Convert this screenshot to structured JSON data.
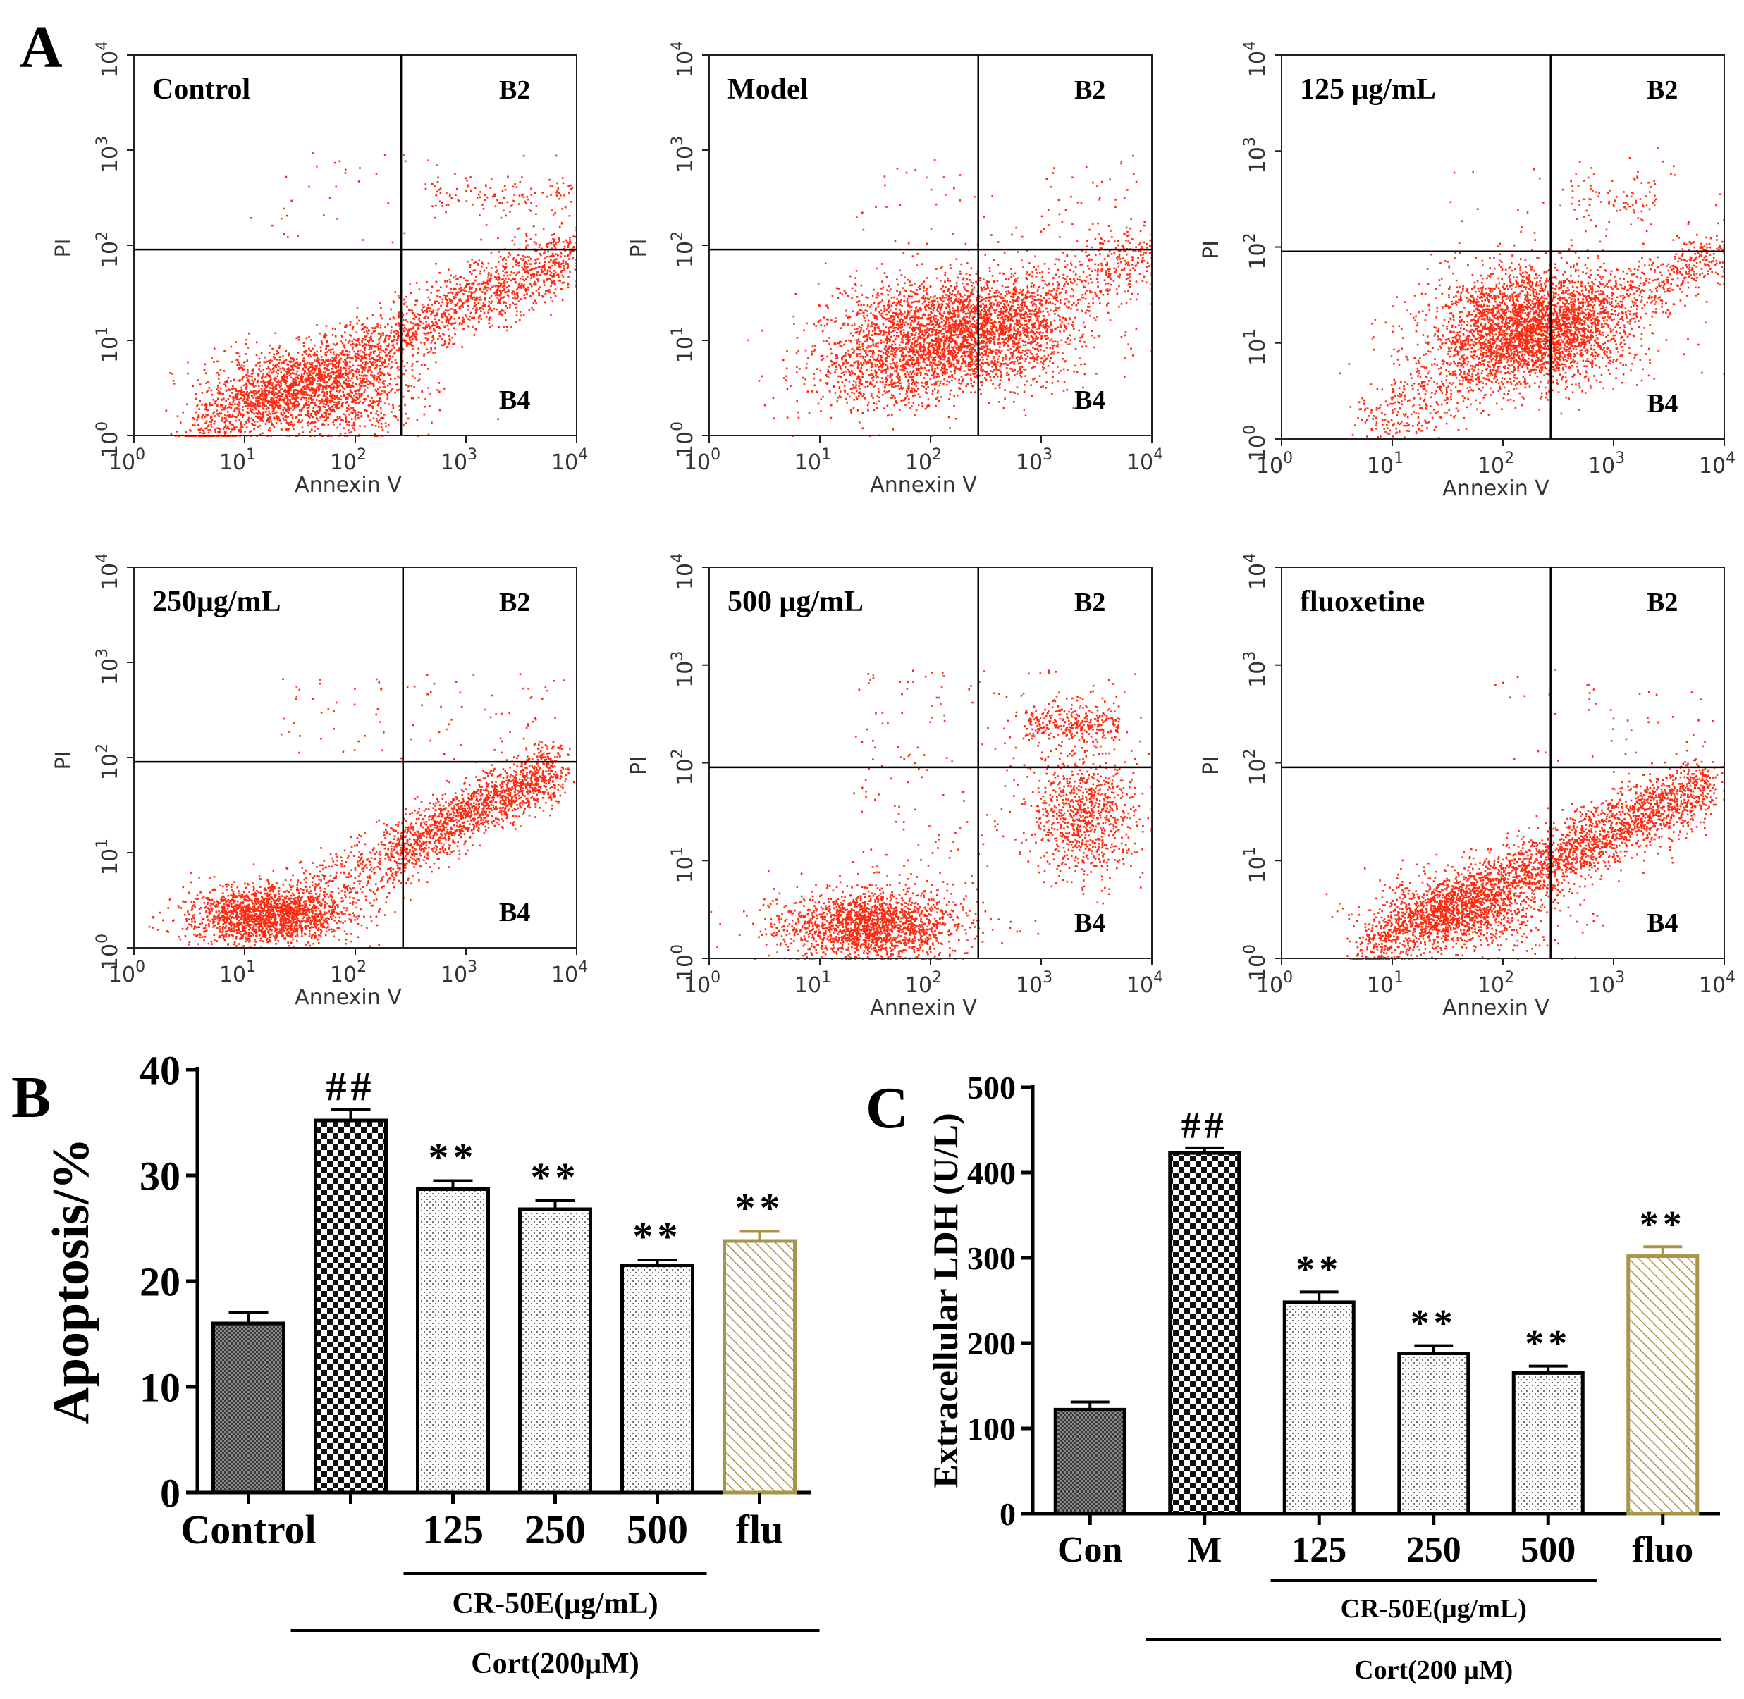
{
  "colors": {
    "dots": "#ff2a12",
    "axis": "#222222",
    "flu": "#a8954a",
    "bar_fill": "#ffffff"
  },
  "panel_labels": {
    "a": "A",
    "b": "B",
    "c": "C"
  },
  "chart_data": [
    {
      "type": "scatter",
      "role": "flow-cytometry-grid",
      "xlabel": "Annexin V",
      "ylabel": "PI",
      "ticks": [
        {
          "base": "10",
          "exp": "0",
          "value": 1
        },
        {
          "base": "10",
          "exp": "1",
          "value": 10
        },
        {
          "base": "10",
          "exp": "2",
          "value": 100
        },
        {
          "base": "10",
          "exp": "3",
          "value": 1000
        },
        {
          "base": "10",
          "exp": "4",
          "value": 10000
        }
      ],
      "xlim": [
        1,
        10000
      ],
      "ylim": [
        1,
        10000
      ],
      "quadrant_labels": {
        "upper_right": "B2",
        "lower_right": "B4"
      },
      "gate": {
        "annexin": 270,
        "pi": 90
      },
      "panels": [
        {
          "label": "Control",
          "quadrant_gate": {
            "annexin": 260,
            "pi": 90
          },
          "populations": [
            {
              "kind": "diag",
              "x_from": 3,
              "x_to": 9000,
              "y_from": 1.1,
              "y_to": 80,
              "spread": 0.18,
              "n": 2200
            },
            {
              "kind": "blob",
              "x": 40,
              "y": 3,
              "sx": 0.45,
              "sy": 0.22,
              "n": 1500
            },
            {
              "kind": "band",
              "x_from": 500,
              "x_to": 9000,
              "y": 330,
              "sy": 0.1,
              "n": 110
            },
            {
              "kind": "sparse",
              "x_from": 10,
              "x_to": 9000,
              "y_from": 100,
              "y_to": 1000,
              "n": 60
            }
          ]
        },
        {
          "label": "Model",
          "quadrant_gate": {
            "annexin": 270,
            "pi": 90
          },
          "populations": [
            {
              "kind": "blob",
              "x": 180,
              "y": 12,
              "sx": 0.5,
              "sy": 0.3,
              "n": 2800
            },
            {
              "kind": "blob",
              "x": 30,
              "y": 5,
              "sx": 0.35,
              "sy": 0.25,
              "n": 600
            },
            {
              "kind": "diag",
              "x_from": 100,
              "x_to": 9000,
              "y_from": 8,
              "y_to": 90,
              "spread": 0.2,
              "n": 700
            },
            {
              "kind": "sparse",
              "x_from": 20,
              "x_to": 9000,
              "y_from": 100,
              "y_to": 900,
              "n": 70
            }
          ]
        },
        {
          "label": "125 μg/mL",
          "quadrant_gate": {
            "annexin": 270,
            "pi": 90
          },
          "populations": [
            {
              "kind": "blob",
              "x": 180,
              "y": 15,
              "sx": 0.45,
              "sy": 0.3,
              "n": 3000
            },
            {
              "kind": "diag",
              "x_from": 5,
              "x_to": 300,
              "y_from": 1.2,
              "y_to": 15,
              "spread": 0.2,
              "n": 700
            },
            {
              "kind": "diag",
              "x_from": 300,
              "x_to": 9000,
              "y_from": 15,
              "y_to": 90,
              "spread": 0.15,
              "n": 500
            },
            {
              "kind": "band",
              "x_from": 400,
              "x_to": 2500,
              "y": 300,
              "sy": 0.15,
              "n": 90
            },
            {
              "kind": "sparse",
              "x_from": 20,
              "x_to": 9000,
              "y_from": 100,
              "y_to": 900,
              "n": 30
            }
          ]
        },
        {
          "label": "250μg/mL",
          "quadrant_gate": {
            "annexin": 270,
            "pi": 90
          },
          "populations": [
            {
              "kind": "blob",
              "x": 15,
              "y": 2.2,
              "sx": 0.35,
              "sy": 0.15,
              "n": 1800
            },
            {
              "kind": "diag",
              "x_from": 200,
              "x_to": 7000,
              "y_from": 10,
              "y_to": 80,
              "spread": 0.15,
              "n": 1500
            },
            {
              "kind": "diag",
              "x_from": 20,
              "x_to": 300,
              "y_from": 3,
              "y_to": 10,
              "spread": 0.2,
              "n": 400
            },
            {
              "kind": "sparse",
              "x_from": 20,
              "x_to": 8000,
              "y_from": 100,
              "y_to": 800,
              "n": 90
            }
          ]
        },
        {
          "label": "500 μg/mL",
          "quadrant_gate": {
            "annexin": 270,
            "pi": 90
          },
          "populations": [
            {
              "kind": "blob",
              "x": 30,
              "y": 2.2,
              "sx": 0.4,
              "sy": 0.18,
              "n": 1900
            },
            {
              "kind": "blob",
              "x": 2500,
              "y": 30,
              "sx": 0.22,
              "sy": 0.28,
              "n": 800
            },
            {
              "kind": "band",
              "x_from": 700,
              "x_to": 5000,
              "y": 260,
              "sy": 0.1,
              "n": 320
            },
            {
              "kind": "sparse",
              "x_from": 20,
              "x_to": 8000,
              "y_from": 5,
              "y_to": 900,
              "n": 250
            }
          ]
        },
        {
          "label": "fluoxetine",
          "quadrant_gate": {
            "annexin": 270,
            "pi": 90
          },
          "populations": [
            {
              "kind": "diag",
              "x_from": 5,
              "x_to": 7000,
              "y_from": 1.2,
              "y_to": 60,
              "spread": 0.17,
              "n": 3000
            },
            {
              "kind": "blob",
              "x": 40,
              "y": 3,
              "sx": 0.4,
              "sy": 0.2,
              "n": 900
            },
            {
              "kind": "sparse",
              "x_from": 80,
              "x_to": 9000,
              "y_from": 100,
              "y_to": 1000,
              "n": 45
            }
          ]
        }
      ]
    },
    {
      "type": "bar",
      "panel": "B",
      "ylabel": "Apoptosis/%",
      "ylim": [
        0,
        40
      ],
      "yticks": [
        "0",
        "10",
        "20",
        "30",
        "40"
      ],
      "categories": [
        "Control",
        "",
        "125",
        "250",
        "500",
        "flu"
      ],
      "values": [
        16.0,
        35.2,
        28.7,
        26.8,
        21.5,
        23.8
      ],
      "errors": [
        1.0,
        1.0,
        0.8,
        0.8,
        0.5,
        0.9
      ],
      "patterns": [
        "dense",
        "checker",
        "dots",
        "dots",
        "dots",
        "hatch"
      ],
      "annotations": [
        "",
        "##",
        "**",
        "**",
        "**",
        "**"
      ],
      "group_labels": {
        "inner": "CR-50E(μg/mL)",
        "outer": "Cort(200μM)"
      }
    },
    {
      "type": "bar",
      "panel": "C",
      "ylabel": "Extracellular LDH (U/L)",
      "ylim": [
        0,
        500
      ],
      "yticks": [
        "0",
        "100",
        "200",
        "300",
        "400",
        "500"
      ],
      "categories": [
        "Con",
        "M",
        "125",
        "250",
        "500",
        "fluo"
      ],
      "values": [
        122,
        423,
        248,
        188,
        165,
        302
      ],
      "errors": [
        9,
        6,
        12,
        9,
        8,
        11
      ],
      "patterns": [
        "dense",
        "checker",
        "dots",
        "dots",
        "dots",
        "hatch"
      ],
      "annotations": [
        "",
        "##",
        "**",
        "**",
        "**",
        "**"
      ],
      "group_labels": {
        "inner": "CR-50E(μg/mL)",
        "outer": "Cort(200 μM)"
      }
    }
  ]
}
